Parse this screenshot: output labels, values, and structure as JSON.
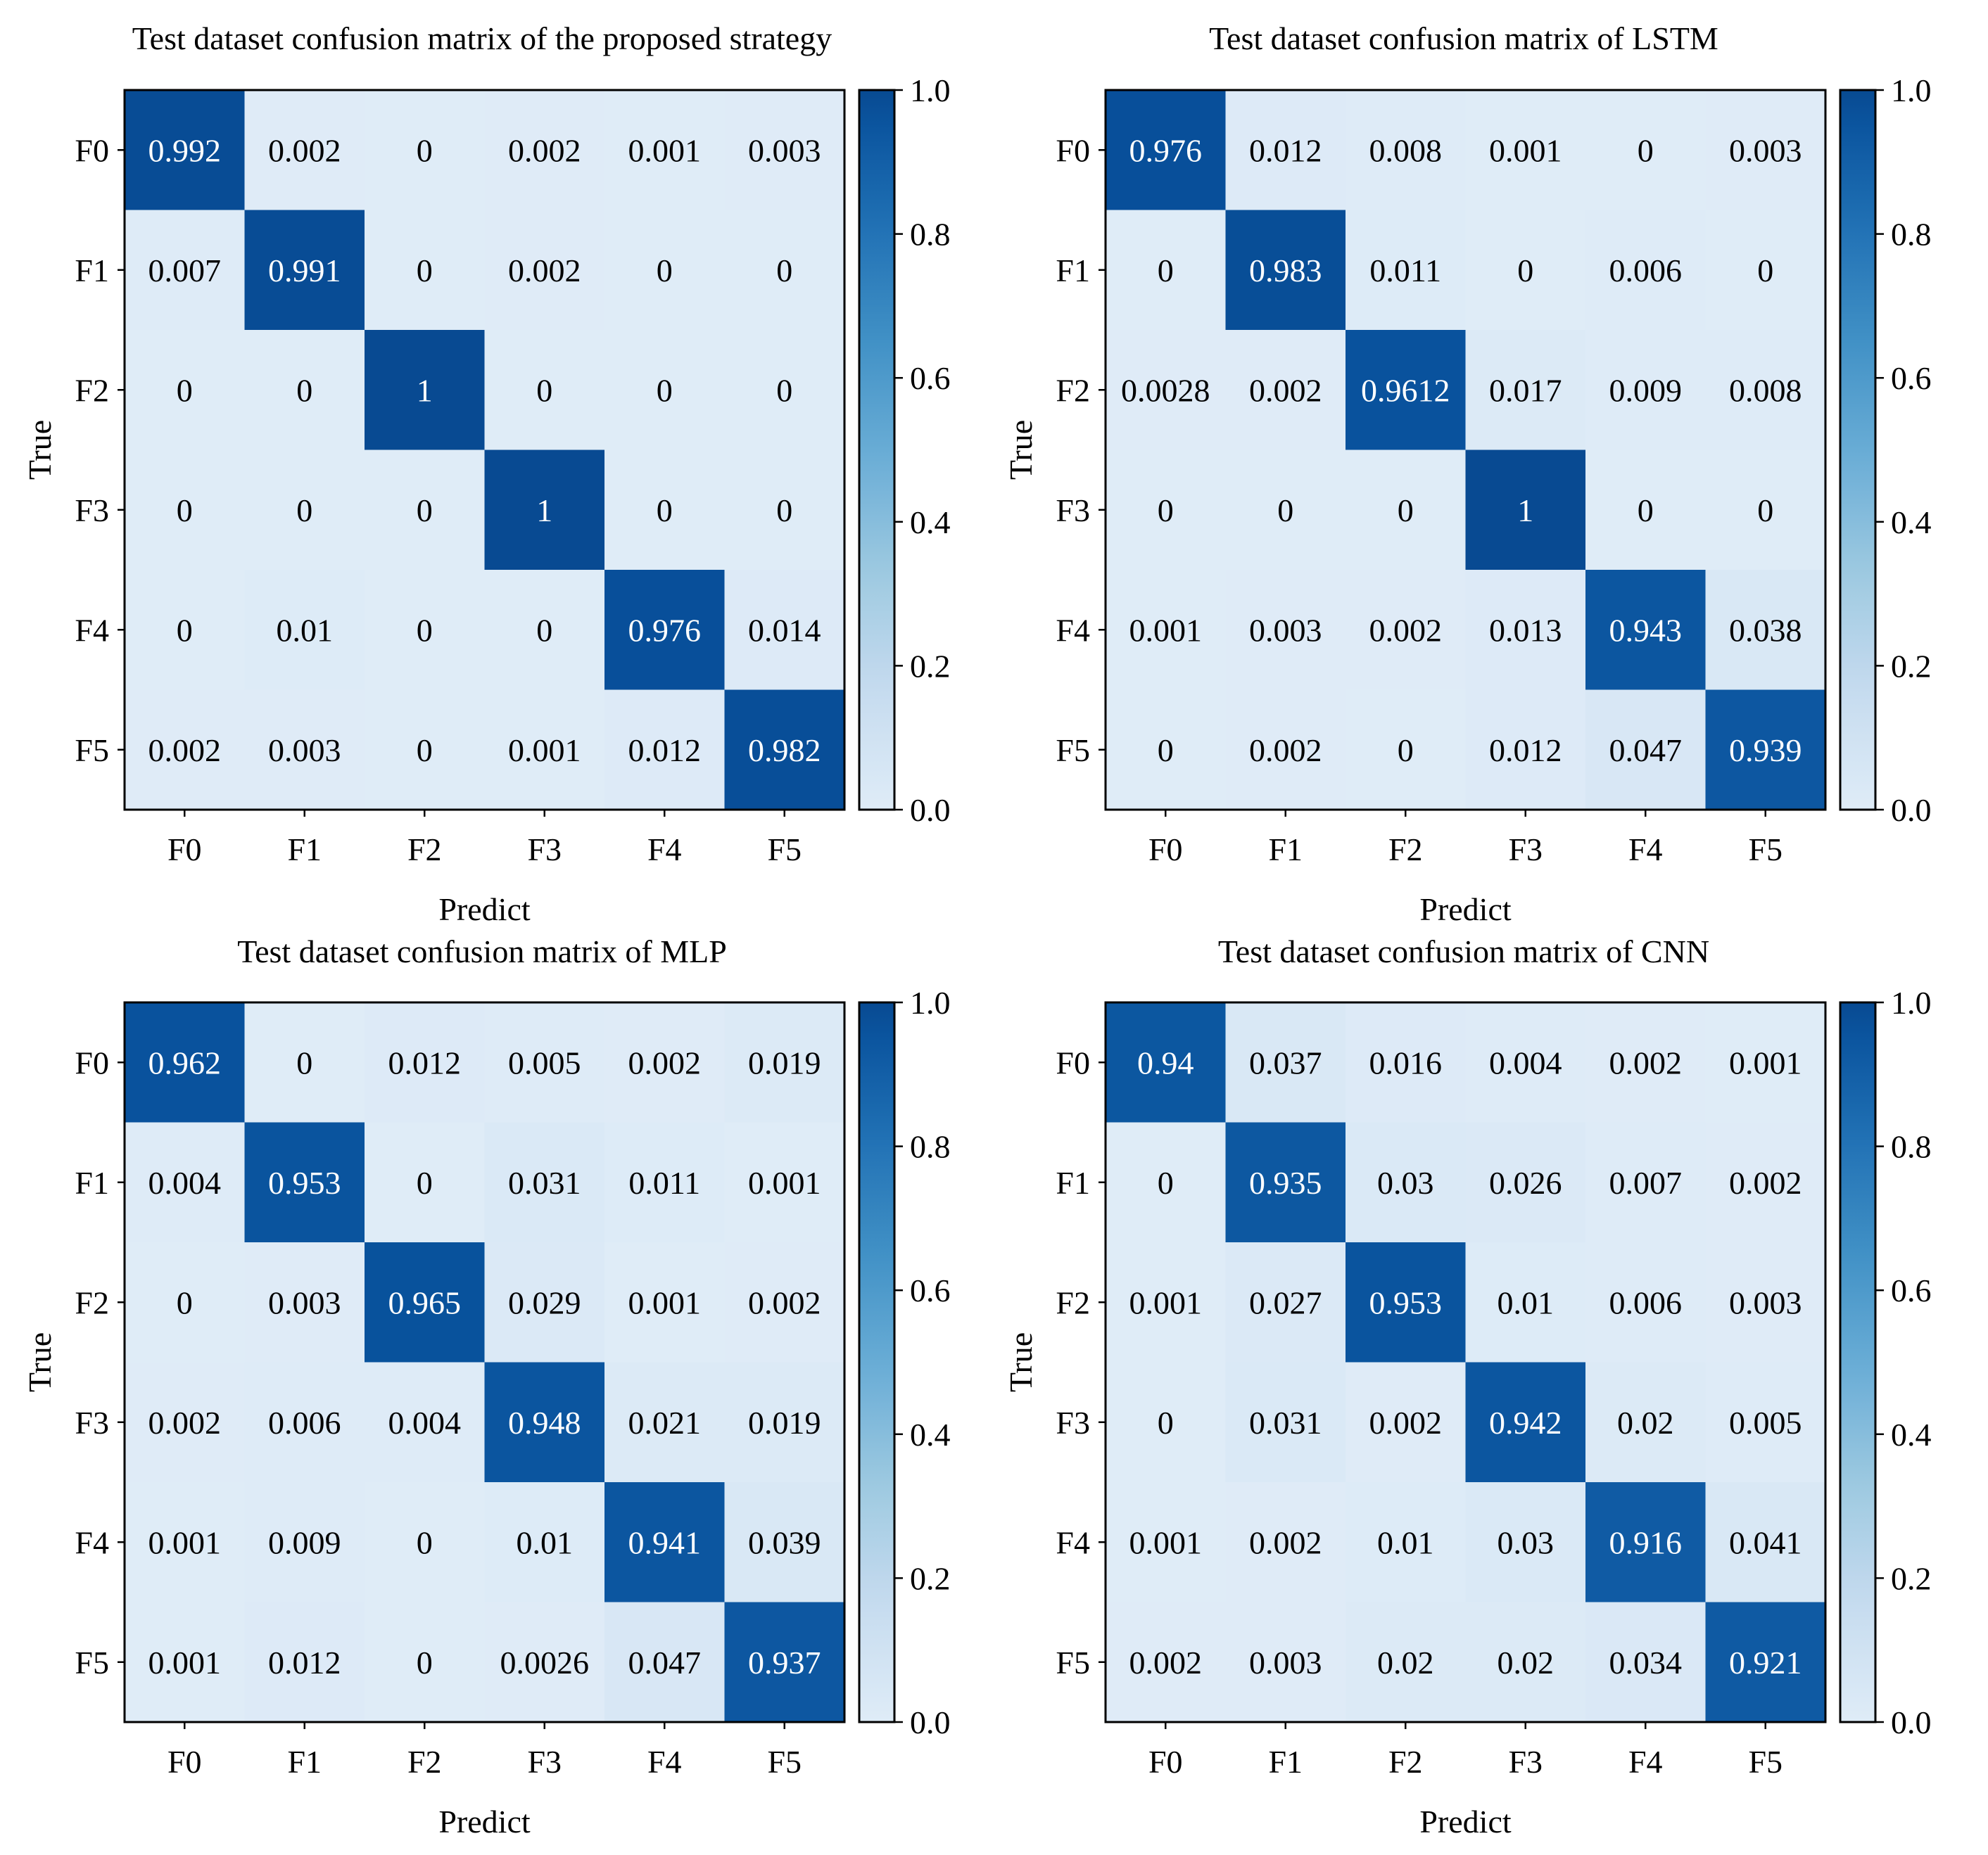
{
  "chart_data": [
    {
      "type": "heatmap",
      "title": "Test dataset confusion matrix of the proposed strategy",
      "xlabel": "Predict",
      "ylabel": "True",
      "x": [
        "F0",
        "F1",
        "F2",
        "F3",
        "F4",
        "F5"
      ],
      "y": [
        "F0",
        "F1",
        "F2",
        "F3",
        "F4",
        "F5"
      ],
      "values": [
        [
          0.992,
          0.002,
          0,
          0.002,
          0.001,
          0.003
        ],
        [
          0.007,
          0.991,
          0,
          0.002,
          0,
          0
        ],
        [
          0,
          0,
          1,
          0,
          0,
          0
        ],
        [
          0,
          0,
          0,
          1,
          0,
          0
        ],
        [
          0,
          0.01,
          0,
          0,
          0.976,
          0.014
        ],
        [
          0.002,
          0.003,
          0,
          0.001,
          0.012,
          0.982
        ]
      ],
      "value_labels": [
        [
          "0.992",
          "0.002",
          "0",
          "0.002",
          "0.001",
          "0.003"
        ],
        [
          "0.007",
          "0.991",
          "0",
          "0.002",
          "0",
          "0"
        ],
        [
          "0",
          "0",
          "1",
          "0",
          "0",
          "0"
        ],
        [
          "0",
          "0",
          "0",
          "1",
          "0",
          "0"
        ],
        [
          "0",
          "0.01",
          "0",
          "0",
          "0.976",
          "0.014"
        ],
        [
          "0.002",
          "0.003",
          "0",
          "0.001",
          "0.012",
          "0.982"
        ]
      ],
      "colorbar": {
        "range": [
          0,
          1
        ],
        "ticks": [
          "0.0",
          "0.2",
          "0.4",
          "0.6",
          "0.8",
          "1.0"
        ],
        "colormap": "Blues"
      },
      "grid": false
    },
    {
      "type": "heatmap",
      "title": "Test dataset confusion matrix of LSTM",
      "xlabel": "Predict",
      "ylabel": "True",
      "x": [
        "F0",
        "F1",
        "F2",
        "F3",
        "F4",
        "F5"
      ],
      "y": [
        "F0",
        "F1",
        "F2",
        "F3",
        "F4",
        "F5"
      ],
      "values": [
        [
          0.976,
          0.012,
          0.008,
          0.001,
          0,
          0.003
        ],
        [
          0,
          0.983,
          0.011,
          0,
          0.006,
          0
        ],
        [
          0.0028,
          0.002,
          0.9612,
          0.017,
          0.009,
          0.008
        ],
        [
          0,
          0,
          0,
          1,
          0,
          0
        ],
        [
          0.001,
          0.003,
          0.002,
          0.013,
          0.943,
          0.038
        ],
        [
          0,
          0.002,
          0,
          0.012,
          0.047,
          0.939
        ]
      ],
      "value_labels": [
        [
          "0.976",
          "0.012",
          "0.008",
          "0.001",
          "0",
          "0.003"
        ],
        [
          "0",
          "0.983",
          "0.011",
          "0",
          "0.006",
          "0"
        ],
        [
          "0.0028",
          "0.002",
          "0.9612",
          "0.017",
          "0.009",
          "0.008"
        ],
        [
          "0",
          "0",
          "0",
          "1",
          "0",
          "0"
        ],
        [
          "0.001",
          "0.003",
          "0.002",
          "0.013",
          "0.943",
          "0.038"
        ],
        [
          "0",
          "0.002",
          "0",
          "0.012",
          "0.047",
          "0.939"
        ]
      ],
      "colorbar": {
        "range": [
          0,
          1
        ],
        "ticks": [
          "0.0",
          "0.2",
          "0.4",
          "0.6",
          "0.8",
          "1.0"
        ],
        "colormap": "Blues"
      },
      "grid": false
    },
    {
      "type": "heatmap",
      "title": "Test dataset confusion matrix of MLP",
      "xlabel": "Predict",
      "ylabel": "True",
      "x": [
        "F0",
        "F1",
        "F2",
        "F3",
        "F4",
        "F5"
      ],
      "y": [
        "F0",
        "F1",
        "F2",
        "F3",
        "F4",
        "F5"
      ],
      "values": [
        [
          0.962,
          0,
          0.012,
          0.005,
          0.002,
          0.019
        ],
        [
          0.004,
          0.953,
          0,
          0.031,
          0.011,
          0.001
        ],
        [
          0,
          0.003,
          0.965,
          0.029,
          0.001,
          0.002
        ],
        [
          0.002,
          0.006,
          0.004,
          0.948,
          0.021,
          0.019
        ],
        [
          0.001,
          0.009,
          0,
          0.01,
          0.941,
          0.039
        ],
        [
          0.001,
          0.012,
          0,
          0.0026,
          0.047,
          0.937
        ]
      ],
      "value_labels": [
        [
          "0.962",
          "0",
          "0.012",
          "0.005",
          "0.002",
          "0.019"
        ],
        [
          "0.004",
          "0.953",
          "0",
          "0.031",
          "0.011",
          "0.001"
        ],
        [
          "0",
          "0.003",
          "0.965",
          "0.029",
          "0.001",
          "0.002"
        ],
        [
          "0.002",
          "0.006",
          "0.004",
          "0.948",
          "0.021",
          "0.019"
        ],
        [
          "0.001",
          "0.009",
          "0",
          "0.01",
          "0.941",
          "0.039"
        ],
        [
          "0.001",
          "0.012",
          "0",
          "0.0026",
          "0.047",
          "0.937"
        ]
      ],
      "colorbar": {
        "range": [
          0,
          1
        ],
        "ticks": [
          "0.0",
          "0.2",
          "0.4",
          "0.6",
          "0.8",
          "1.0"
        ],
        "colormap": "Blues"
      },
      "grid": false
    },
    {
      "type": "heatmap",
      "title": "Test dataset confusion matrix of CNN",
      "xlabel": "Predict",
      "ylabel": "True",
      "x": [
        "F0",
        "F1",
        "F2",
        "F3",
        "F4",
        "F5"
      ],
      "y": [
        "F0",
        "F1",
        "F2",
        "F3",
        "F4",
        "F5"
      ],
      "values": [
        [
          0.94,
          0.037,
          0.016,
          0.004,
          0.002,
          0.001
        ],
        [
          0,
          0.935,
          0.03,
          0.026,
          0.007,
          0.002
        ],
        [
          0.001,
          0.027,
          0.953,
          0.01,
          0.006,
          0.003
        ],
        [
          0,
          0.031,
          0.002,
          0.942,
          0.02,
          0.005
        ],
        [
          0.001,
          0.002,
          0.01,
          0.03,
          0.916,
          0.041
        ],
        [
          0.002,
          0.003,
          0.02,
          0.02,
          0.034,
          0.921
        ]
      ],
      "value_labels": [
        [
          "0.94",
          "0.037",
          "0.016",
          "0.004",
          "0.002",
          "0.001"
        ],
        [
          "0",
          "0.935",
          "0.03",
          "0.026",
          "0.007",
          "0.002"
        ],
        [
          "0.001",
          "0.027",
          "0.953",
          "0.01",
          "0.006",
          "0.003"
        ],
        [
          "0",
          "0.031",
          "0.002",
          "0.942",
          "0.02",
          "0.005"
        ],
        [
          "0.001",
          "0.002",
          "0.01",
          "0.03",
          "0.916",
          "0.041"
        ],
        [
          "0.002",
          "0.003",
          "0.02",
          "0.02",
          "0.034",
          "0.921"
        ]
      ],
      "colorbar": {
        "range": [
          0,
          1
        ],
        "ticks": [
          "0.0",
          "0.2",
          "0.4",
          "0.6",
          "0.8",
          "1.0"
        ],
        "colormap": "Blues"
      },
      "grid": false
    }
  ]
}
